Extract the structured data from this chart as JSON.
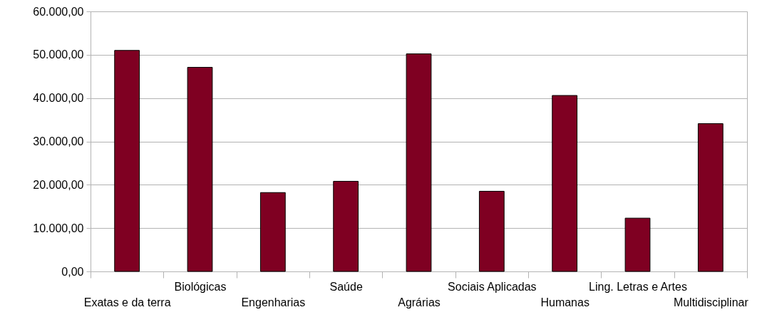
{
  "chart_data": {
    "type": "bar",
    "categories": [
      "Exatas e da terra",
      "Biológicas",
      "Engenharias",
      "Saúde",
      "Agrárias",
      "Sociais Aplicadas",
      "Humanas",
      "Ling. Letras e Artes",
      "Multidisciplinar"
    ],
    "values": [
      51000,
      47100,
      18200,
      20800,
      50200,
      18500,
      40600,
      12300,
      34100
    ],
    "color": "#7f0022",
    "ylim": [
      0,
      60000
    ],
    "yticks": [
      {
        "value": 0,
        "label": "0,00"
      },
      {
        "value": 10000,
        "label": "10.000,00"
      },
      {
        "value": 20000,
        "label": "20.000,00"
      },
      {
        "value": 30000,
        "label": "30.000,00"
      },
      {
        "value": 40000,
        "label": "40.000,00"
      },
      {
        "value": 50000,
        "label": "50.000,00"
      },
      {
        "value": 60000,
        "label": "60.000,00"
      }
    ],
    "grid": "y"
  }
}
